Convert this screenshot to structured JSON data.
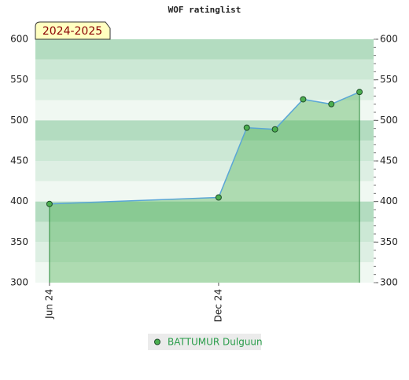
{
  "chart_data": {
    "type": "area",
    "title": "WOF ratinglist",
    "annotation": "2024-2025",
    "x": [
      0,
      6,
      7,
      8,
      9,
      10,
      11
    ],
    "xlim": [
      -0.5,
      11.5
    ],
    "xticks": [
      {
        "value": 0,
        "label": "Jun 24"
      },
      {
        "value": 6,
        "label": "Dec 24"
      }
    ],
    "series": [
      {
        "name": "BATTUMUR Dulguun",
        "color": "#4caf50",
        "values": [
          397,
          405,
          491,
          489,
          526,
          520,
          535
        ]
      }
    ],
    "ylim": [
      300,
      600
    ],
    "yticks": [
      300,
      350,
      400,
      450,
      500,
      550,
      600
    ],
    "legend": "bottom"
  }
}
